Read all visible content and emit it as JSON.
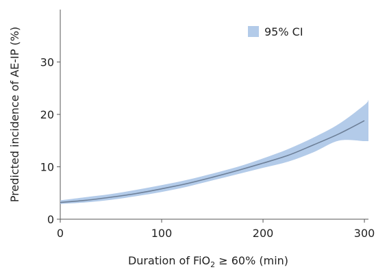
{
  "chart_data": {
    "type": "line",
    "title": "",
    "xlabel": {
      "prefix": "Duration of FiO",
      "subscript": "2",
      "suffix": " ≥ 60% (min)"
    },
    "ylabel": "Predicted incidence of AE-IP (%)",
    "xlim": [
      0,
      304
    ],
    "ylim": [
      0,
      40
    ],
    "x_ticks": [
      0,
      100,
      200,
      300
    ],
    "y_ticks": [
      0,
      10,
      20,
      30
    ],
    "x_tick_labels": [
      "0",
      "100",
      "200",
      "300"
    ],
    "y_tick_labels": [
      "0",
      "10",
      "20",
      "30"
    ],
    "legend": {
      "placement": "top-right",
      "entries": [
        {
          "label": "95% CI",
          "color": "#b3cbe9"
        }
      ]
    },
    "series": [
      {
        "x": [
          0,
          25,
          50,
          75,
          100,
          125,
          150,
          175,
          200,
          225,
          250,
          275,
          300
        ],
        "y": [
          3.2,
          3.6,
          4.2,
          4.9,
          5.8,
          6.8,
          8.0,
          9.3,
          10.7,
          12.2,
          14.2,
          16.3,
          18.8
        ],
        "color": "#6d7f97"
      }
    ],
    "bands": [
      {
        "name": "95% CI",
        "x": [
          0,
          25,
          50,
          75,
          100,
          125,
          150,
          175,
          200,
          225,
          250,
          275,
          300,
          304
        ],
        "lower": [
          2.9,
          3.2,
          3.7,
          4.4,
          5.2,
          6.2,
          7.4,
          8.6,
          9.8,
          11.0,
          12.8,
          15.0,
          14.9,
          14.9
        ],
        "upper": [
          3.6,
          4.2,
          4.8,
          5.6,
          6.5,
          7.5,
          8.7,
          10.0,
          11.6,
          13.4,
          15.6,
          18.2,
          21.8,
          22.8
        ],
        "color": "#b3cbe9"
      }
    ]
  }
}
